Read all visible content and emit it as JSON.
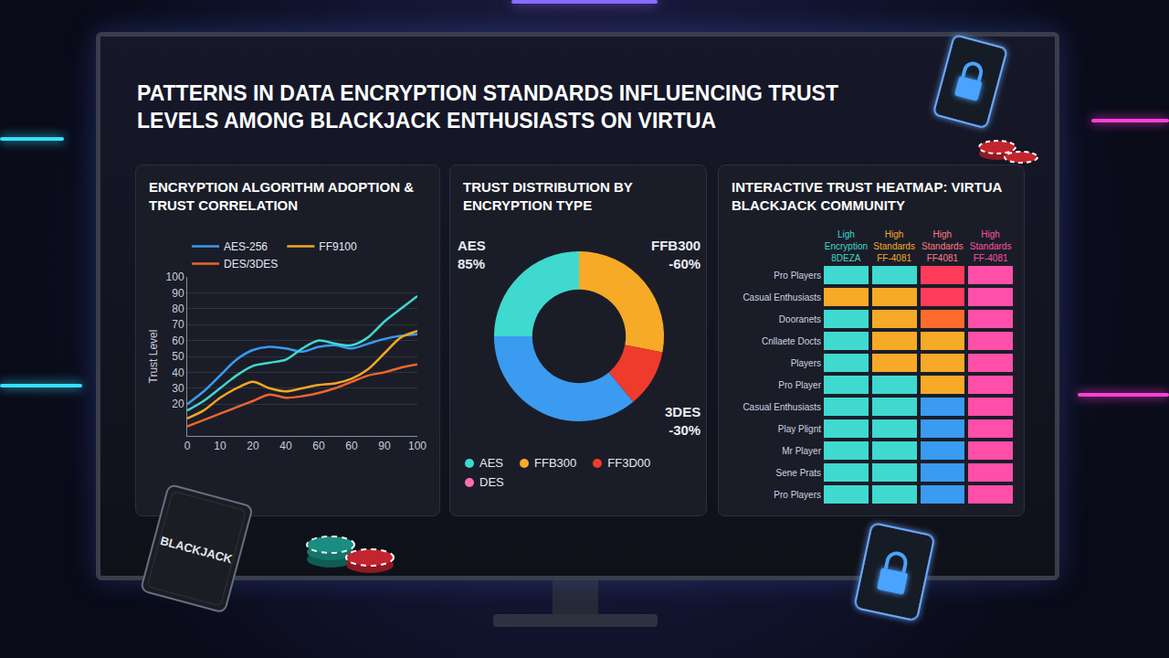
{
  "title": "PATTERNS IN DATA ENCRYPTION STANDARDS INFLUENCING TRUST LEVELS AMONG BLACKJACK ENTHUSIASTS ON VIRTUA",
  "card_label": "BLACKJACK",
  "chart_data": [
    {
      "type": "line",
      "title": "ENCRYPTION ALGORITHM ADOPTION & TRUST CORRELATION",
      "y_label": "Trust Level",
      "categories": [
        "0",
        null,
        "10",
        null,
        "20",
        null,
        "40",
        null,
        "60",
        null,
        "60",
        null,
        "90",
        null,
        "100"
      ],
      "ylim": [
        0,
        100
      ],
      "yticks": [
        20,
        30,
        40,
        50,
        60,
        70,
        80,
        90,
        100
      ],
      "grid": true,
      "legend": "top-left",
      "series": [
        {
          "name": "AES-256",
          "color": "#3a9bf0",
          "values": [
            20,
            28,
            38,
            48,
            54,
            56,
            55,
            53,
            56,
            57,
            55,
            58,
            61,
            63,
            64
          ]
        },
        {
          "name": "FF9100",
          "color": "#f5a623",
          "values": [
            11,
            16,
            24,
            30,
            34,
            30,
            28,
            30,
            32,
            33,
            36,
            42,
            52,
            62,
            66
          ]
        },
        {
          "name": "DES/3DES",
          "color": "#f0652d",
          "values": [
            6,
            10,
            14,
            18,
            22,
            26,
            24,
            25,
            27,
            30,
            34,
            38,
            40,
            43,
            45
          ]
        },
        {
          "color": "#3fd9cf",
          "values": [
            16,
            22,
            30,
            38,
            44,
            46,
            48,
            55,
            60,
            58,
            57,
            62,
            72,
            80,
            88
          ]
        }
      ]
    },
    {
      "type": "pie",
      "title": "TRUST DISTRIBUTION BY ENCRYPTION TYPE",
      "categories": [
        "AES",
        "FFB300",
        "FF3D00",
        null,
        "DES"
      ],
      "values": [
        25,
        28,
        11,
        36,
        0
      ],
      "colors": [
        "#3fd9cf",
        "#f7a928",
        "#ef3b2c",
        "#3a9bf0",
        "#ff6fae"
      ],
      "annotations": [
        [
          "AES",
          "85%"
        ],
        [
          "FFB300",
          "-60%"
        ],
        [
          "3DES",
          "-30%"
        ]
      ],
      "legend": "bottom"
    },
    {
      "type": "heatmap",
      "title": "INTERACTIVE TRUST HEATMAP: VIRTUA BLACKJACK COMMUNITY",
      "columns": [
        "Ligh Encryption 8DEZA",
        "High Standards FF-4081",
        "High Standards FF4081",
        "High Standards FF-4081"
      ],
      "rows": [
        "Pro Players",
        "Casual Enthusiasts",
        "Dooranets",
        "Cnllaete Docts",
        "Players",
        "Pro Player",
        "Casual Enthusiasts",
        "Play Plignt",
        "Mr Player",
        "Sene Prats",
        "Pro Players"
      ],
      "cells": [
        [
          90,
          90,
          30,
          10
        ],
        [
          50,
          50,
          30,
          10
        ],
        [
          90,
          50,
          40,
          10
        ],
        [
          90,
          50,
          50,
          10
        ],
        [
          90,
          50,
          50,
          10
        ],
        [
          90,
          90,
          50,
          10
        ],
        [
          90,
          90,
          70,
          10
        ],
        [
          90,
          90,
          70,
          10
        ],
        [
          90,
          90,
          70,
          10
        ],
        [
          90,
          90,
          70,
          10
        ],
        [
          90,
          90,
          70,
          10
        ]
      ],
      "zlim": [
        0,
        100
      ]
    }
  ]
}
